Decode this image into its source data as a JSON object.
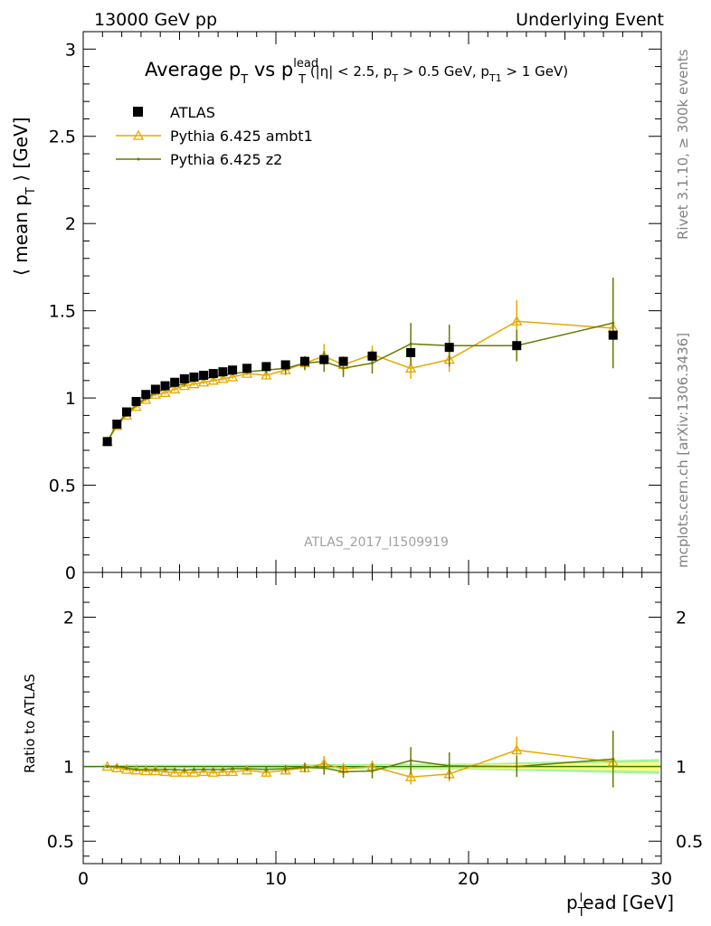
{
  "header": {
    "left": "13000 GeV pp",
    "right": "Underlying Event"
  },
  "side": {
    "rivet": "Rivet 3.1.10, ≥ 300k events",
    "mcplots": "mcplots.cern.ch [arXiv:1306.3436]"
  },
  "watermark": "ATLAS_2017_I1509919",
  "colors": {
    "atlas": "#000000",
    "ambt1": "#e8a800",
    "z2": "#6b7a00",
    "band_inner": "#ffff80",
    "band_outer": "#a6f2a6",
    "ref_line": "#2e7d00"
  },
  "chart_data": [
    {
      "panel": "main",
      "type": "scatter",
      "title": "Average p_T vs p_T^lead (|η| < 2.5, p_T > 0.5 GeV, p_T1 > 1 GeV)",
      "title_parts": [
        "Average p",
        "T",
        "vs p",
        "lead",
        "T",
        "(|η| < 2.5, p",
        "T",
        "> 0.5 GeV, p",
        "T1",
        "> 1 GeV)"
      ],
      "ylabel": "⟨ mean p_T ⟩ [GeV]",
      "ylabel_parts": [
        "⟨ mean p",
        "T",
        "⟩ [GeV]"
      ],
      "xlim": [
        0,
        30
      ],
      "ylim": [
        0,
        3.1
      ],
      "yticks": [
        "0",
        "0.5",
        "1",
        "1.5",
        "2",
        "2.5",
        "3"
      ],
      "legend": [
        "ATLAS",
        "Pythia 6.425 ambt1",
        "Pythia 6.425 z2"
      ],
      "legend_position": "top-left",
      "series": [
        {
          "name": "ATLAS",
          "x": [
            1.25,
            1.75,
            2.25,
            2.75,
            3.25,
            3.75,
            4.25,
            4.75,
            5.25,
            5.75,
            6.25,
            6.75,
            7.25,
            7.75,
            8.5,
            9.5,
            10.5,
            11.5,
            12.5,
            13.5,
            15.0,
            17.0,
            19.0,
            22.5,
            27.5
          ],
          "y": [
            0.75,
            0.85,
            0.92,
            0.98,
            1.02,
            1.05,
            1.07,
            1.09,
            1.11,
            1.12,
            1.13,
            1.14,
            1.15,
            1.16,
            1.17,
            1.18,
            1.19,
            1.21,
            1.22,
            1.21,
            1.24,
            1.26,
            1.29,
            1.3,
            1.36
          ]
        },
        {
          "name": "Pythia 6.425 ambt1",
          "x": [
            1.25,
            1.75,
            2.25,
            2.75,
            3.25,
            3.75,
            4.25,
            4.75,
            5.25,
            5.75,
            6.25,
            6.75,
            7.25,
            7.75,
            8.5,
            9.5,
            10.5,
            11.5,
            12.5,
            13.5,
            15.0,
            17.0,
            19.0,
            22.5,
            27.5
          ],
          "y": [
            0.75,
            0.84,
            0.9,
            0.95,
            0.99,
            1.02,
            1.03,
            1.05,
            1.07,
            1.08,
            1.09,
            1.1,
            1.11,
            1.12,
            1.14,
            1.13,
            1.16,
            1.2,
            1.24,
            1.19,
            1.25,
            1.17,
            1.22,
            1.44,
            1.4
          ],
          "err": [
            0.01,
            0.01,
            0.01,
            0.01,
            0.01,
            0.01,
            0.01,
            0.01,
            0.01,
            0.01,
            0.01,
            0.01,
            0.01,
            0.01,
            0.01,
            0.02,
            0.03,
            0.04,
            0.07,
            0.05,
            0.05,
            0.06,
            0.07,
            0.12,
            0.22
          ]
        },
        {
          "name": "Pythia 6.425 z2",
          "x": [
            1.25,
            1.75,
            2.25,
            2.75,
            3.25,
            3.75,
            4.25,
            4.75,
            5.25,
            5.75,
            6.25,
            6.75,
            7.25,
            7.75,
            8.5,
            9.5,
            10.5,
            11.5,
            12.5,
            13.5,
            15.0,
            17.0,
            19.0,
            22.5,
            27.5
          ],
          "y": [
            0.75,
            0.85,
            0.91,
            0.96,
            1.0,
            1.03,
            1.05,
            1.07,
            1.08,
            1.1,
            1.11,
            1.12,
            1.13,
            1.14,
            1.15,
            1.16,
            1.17,
            1.2,
            1.21,
            1.17,
            1.2,
            1.31,
            1.3,
            1.3,
            1.43
          ],
          "err": [
            0.01,
            0.01,
            0.01,
            0.01,
            0.01,
            0.01,
            0.01,
            0.01,
            0.01,
            0.01,
            0.01,
            0.01,
            0.01,
            0.01,
            0.01,
            0.02,
            0.03,
            0.04,
            0.06,
            0.05,
            0.06,
            0.12,
            0.12,
            0.09,
            0.26
          ]
        }
      ]
    },
    {
      "panel": "ratio",
      "type": "line",
      "ylabel": "Ratio to ATLAS",
      "xlabel": "p_T^lead [GeV]",
      "xlabel_parts": [
        "p",
        "T",
        "l",
        "ead [GeV]"
      ],
      "xlim": [
        0,
        30
      ],
      "ylim": [
        0.35,
        2.3
      ],
      "xticks": [
        "0",
        "10",
        "20",
        "30"
      ],
      "yticks": [
        "0.5",
        "1",
        "2"
      ],
      "series": [
        {
          "name": "Pythia 6.425 ambt1",
          "x": [
            1.25,
            1.75,
            2.25,
            2.75,
            3.25,
            3.75,
            4.25,
            4.75,
            5.25,
            5.75,
            6.25,
            6.75,
            7.25,
            7.75,
            8.5,
            9.5,
            10.5,
            11.5,
            12.5,
            13.5,
            15.0,
            17.0,
            19.0,
            22.5,
            27.5
          ],
          "y": [
            1.0,
            0.99,
            0.98,
            0.975,
            0.97,
            0.97,
            0.965,
            0.96,
            0.96,
            0.96,
            0.965,
            0.96,
            0.965,
            0.965,
            0.975,
            0.96,
            0.975,
            0.99,
            1.02,
            0.985,
            1.0,
            0.93,
            0.95,
            1.11,
            1.03
          ],
          "err": [
            0.01,
            0.01,
            0.01,
            0.01,
            0.01,
            0.01,
            0.01,
            0.01,
            0.01,
            0.01,
            0.01,
            0.01,
            0.01,
            0.01,
            0.01,
            0.02,
            0.025,
            0.03,
            0.05,
            0.04,
            0.04,
            0.05,
            0.05,
            0.09,
            0.16
          ]
        },
        {
          "name": "Pythia 6.425 z2",
          "x": [
            1.25,
            1.75,
            2.25,
            2.75,
            3.25,
            3.75,
            4.25,
            4.75,
            5.25,
            5.75,
            6.25,
            6.75,
            7.25,
            7.75,
            8.5,
            9.5,
            10.5,
            11.5,
            12.5,
            13.5,
            15.0,
            17.0,
            19.0,
            22.5,
            27.5
          ],
          "y": [
            1.0,
            1.0,
            0.99,
            0.98,
            0.98,
            0.98,
            0.98,
            0.98,
            0.975,
            0.98,
            0.98,
            0.98,
            0.98,
            0.985,
            0.985,
            0.98,
            0.985,
            0.995,
            0.99,
            0.965,
            0.97,
            1.04,
            1.005,
            1.0,
            1.05
          ],
          "err": [
            0.01,
            0.01,
            0.01,
            0.01,
            0.01,
            0.01,
            0.01,
            0.01,
            0.01,
            0.01,
            0.01,
            0.01,
            0.01,
            0.01,
            0.01,
            0.02,
            0.025,
            0.03,
            0.045,
            0.04,
            0.05,
            0.09,
            0.09,
            0.07,
            0.19
          ]
        }
      ],
      "band": {
        "x": [
          1.0,
          2.5,
          5,
          7.5,
          10,
          15,
          20,
          25,
          29.9
        ],
        "inner": [
          0.008,
          0.008,
          0.008,
          0.008,
          0.008,
          0.01,
          0.012,
          0.02,
          0.03
        ],
        "outer": [
          0.012,
          0.012,
          0.012,
          0.012,
          0.014,
          0.018,
          0.02,
          0.035,
          0.05
        ]
      }
    }
  ]
}
